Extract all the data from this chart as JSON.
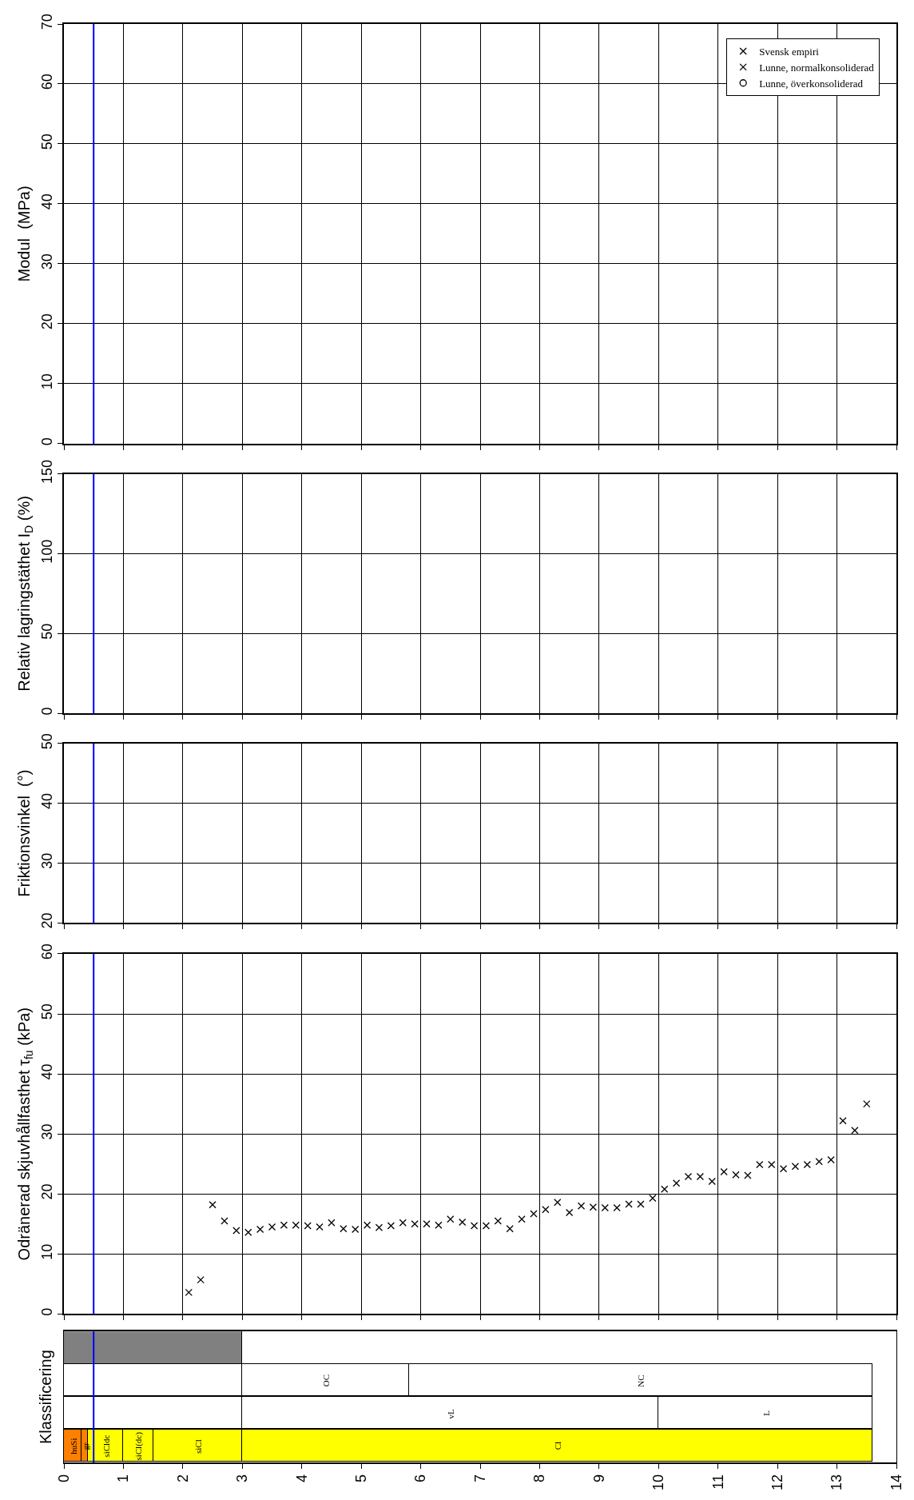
{
  "chart_data": [
    {
      "type": "scatter",
      "ylabel": "Modul  (MPa)",
      "xlim": [
        0,
        14
      ],
      "xticks": [
        0,
        1,
        2,
        3,
        4,
        5,
        6,
        7,
        8,
        9,
        10,
        11,
        12,
        13,
        14
      ],
      "ylim": [
        0,
        70
      ],
      "yticks": [
        0,
        10,
        20,
        30,
        40,
        50,
        60,
        70
      ],
      "tick_labels": "y",
      "grid": true,
      "legend": "top right",
      "series": [
        {
          "name": "Lunne, överkonsoliderad",
          "color": "#000000",
          "marker": "circle",
          "x": [
            null
          ],
          "values": [
            null
          ]
        },
        {
          "name": "Lunne, normalkonsoliderad",
          "color": "#000000",
          "marker": "cross",
          "x": [
            null
          ],
          "values": [
            null
          ]
        }
      ],
      "ref_lines": [
        {
          "axis": "x",
          "value": 0.5,
          "color": "#0000ff"
        }
      ]
    },
    {
      "type": "scatter",
      "ylabel": "Relativ lagringstäthet I$_{D}$ (%)",
      "xlim": [
        0,
        14
      ],
      "xticks": [
        0,
        1,
        2,
        3,
        4,
        5,
        6,
        7,
        8,
        9,
        10,
        11,
        12,
        13,
        14
      ],
      "ylim": [
        0,
        150
      ],
      "yticks": [
        0,
        50,
        100,
        150
      ],
      "tick_labels": "y",
      "grid": true,
      "ref_lines": [
        {
          "axis": "x",
          "value": 0.5,
          "color": "#0000ff"
        }
      ]
    },
    {
      "type": "scatter",
      "ylabel": "Friktionsvinkel  (°)",
      "xlim": [
        0,
        14
      ],
      "xticks": [
        0,
        1,
        2,
        3,
        4,
        5,
        6,
        7,
        8,
        9,
        10,
        11,
        12,
        13,
        14
      ],
      "ylim": [
        20,
        50
      ],
      "yticks": [
        20,
        30,
        40,
        50
      ],
      "tick_labels": "y",
      "grid": true,
      "ref_lines": [
        {
          "axis": "x",
          "value": 0.5,
          "color": "#0000ff"
        }
      ]
    },
    {
      "type": "scatter",
      "ylabel": "Odränerad skjuvhållfasthet τ$_{fu}$ (kPa)",
      "xlim": [
        0,
        14
      ],
      "xticks": [
        0,
        1,
        2,
        3,
        4,
        5,
        6,
        7,
        8,
        9,
        10,
        11,
        12,
        13,
        14
      ],
      "ylim": [
        0,
        60
      ],
      "yticks": [
        0,
        10,
        20,
        30,
        40,
        50,
        60
      ],
      "tick_labels": "y",
      "grid": true,
      "series": [
        {
          "name": "Svensk empiri",
          "color": "#000000",
          "marker": "cross",
          "x": [
            2.1,
            2.3,
            2.5,
            2.7,
            2.9,
            3.1,
            3.3,
            3.5,
            3.7,
            3.9,
            4.1,
            4.3,
            4.5,
            4.7,
            4.9,
            5.1,
            5.3,
            5.5,
            5.7,
            5.9,
            6.1,
            6.3,
            6.5,
            6.7,
            6.9,
            7.1,
            7.3,
            7.5,
            7.7,
            7.9,
            8.1,
            8.3,
            8.5,
            8.7,
            8.9,
            9.1,
            9.3,
            9.5,
            9.7,
            9.9,
            10.1,
            10.3,
            10.5,
            10.7,
            10.9,
            11.1,
            11.3,
            11.5,
            11.7,
            11.9,
            12.1,
            12.3,
            12.5,
            12.7,
            12.9
          ],
          "values": [
            3.6,
            5.7,
            18.2,
            15.5,
            13.9,
            13.6,
            14.1,
            14.5,
            14.8,
            14.8,
            14.7,
            14.5,
            15.2,
            14.2,
            14.1,
            14.8,
            14.4,
            14.7,
            15.2,
            15.0,
            15.0,
            14.8,
            15.8,
            15.3,
            14.7,
            14.7,
            15.5,
            14.2,
            15.8,
            16.7,
            17.4,
            18.6,
            16.9,
            18.0,
            17.8,
            17.7,
            17.7,
            18.3,
            18.3,
            19.3,
            20.8,
            21.8,
            22.9,
            22.9,
            22.1,
            23.7,
            23.2,
            23.1,
            24.9,
            24.9,
            24.2,
            24.6,
            24.9,
            25.4,
            25.7
          ]
        },
        {
          "color": "#000000",
          "marker": "cross",
          "x": [
            13.1,
            13.3,
            13.5
          ],
          "values": [
            32.2,
            30.6,
            35.0
          ]
        }
      ],
      "ref_lines": [
        {
          "axis": "x",
          "value": 0.5,
          "color": "#0000ff"
        }
      ]
    },
    {
      "type": "bar",
      "orientation": "horizontal",
      "stacked": true,
      "ylabel": "Klassificering",
      "xlim": [
        0,
        14
      ],
      "xticks": [
        0,
        1,
        2,
        3,
        4,
        5,
        6,
        7,
        8,
        9,
        10,
        11,
        12,
        13,
        14
      ],
      "tick_labels": "x",
      "categories": [
        null,
        null,
        null,
        null
      ],
      "series": [
        {
          "values": [
            3,
            3,
            3,
            0.3
          ],
          "colors": [
            "#808080",
            "#ffffff",
            "#ffffff",
            "#ff8000"
          ],
          "value_labels": [
            null,
            null,
            null,
            "huSi"
          ]
        },
        {
          "values": [
            null,
            2.8,
            7,
            0.1
          ],
          "colors": [
            null,
            "#ffffff",
            "#ffffff",
            "#ff8000"
          ],
          "value_labels": [
            null,
            "OC",
            "vL",
            "gr"
          ]
        },
        {
          "values": [
            null,
            7.8,
            3.6,
            0.6
          ],
          "colors": [
            null,
            "#ffffff",
            "#ffffff",
            "#ffff00"
          ],
          "value_labels": [
            null,
            "NC",
            "L",
            "siCldc"
          ]
        },
        {
          "values": [
            null,
            null,
            null,
            0.5
          ],
          "colors": [
            null,
            null,
            null,
            "#ffff00"
          ],
          "value_labels": [
            null,
            null,
            null,
            "siCl(dc)"
          ]
        },
        {
          "values": [
            null,
            null,
            null,
            1.5
          ],
          "colors": [
            null,
            null,
            null,
            "#ffff00"
          ],
          "value_labels": [
            null,
            null,
            null,
            "siCl"
          ]
        },
        {
          "values": [
            null,
            null,
            null,
            10.6
          ],
          "colors": [
            null,
            null,
            null,
            "#ffff00"
          ],
          "value_labels": [
            null,
            null,
            null,
            "Cl"
          ]
        }
      ],
      "ref_lines": [
        {
          "axis": "x",
          "value": 0.5,
          "color": "#0000ff"
        }
      ]
    }
  ]
}
